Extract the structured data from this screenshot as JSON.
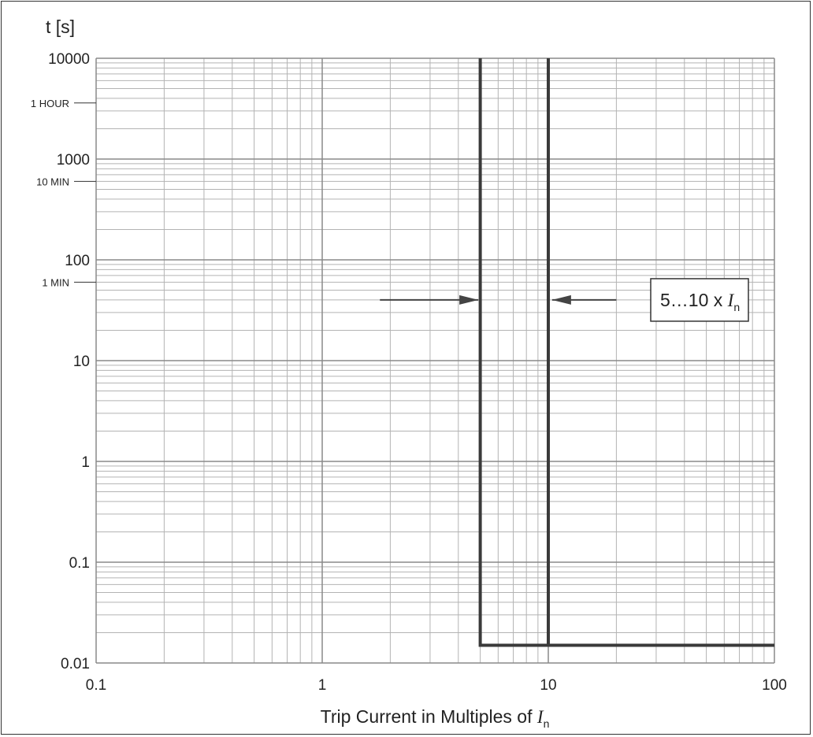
{
  "chart_data": {
    "type": "line",
    "title": "",
    "xlabel": {
      "text": "Trip Current in Multiples of ",
      "symbol": "I",
      "subscript": "n"
    },
    "ylabel": "t [s]",
    "x_scale": "log",
    "y_scale": "log",
    "xlim": [
      0.1,
      100
    ],
    "ylim": [
      0.01,
      10000
    ],
    "grid": true,
    "x_ticks": [
      {
        "value": 0.1,
        "label": "0.1"
      },
      {
        "value": 1,
        "label": "1"
      },
      {
        "value": 10,
        "label": "10"
      },
      {
        "value": 100,
        "label": "100"
      }
    ],
    "y_ticks": [
      {
        "value": 0.01,
        "label": "0.01"
      },
      {
        "value": 0.1,
        "label": "0.1"
      },
      {
        "value": 1,
        "label": "1"
      },
      {
        "value": 10,
        "label": "10"
      },
      {
        "value": 100,
        "label": "100"
      },
      {
        "value": 1000,
        "label": "1000"
      },
      {
        "value": 10000,
        "label": "10000"
      }
    ],
    "time_marks": [
      {
        "value": 3600,
        "label": "1 HOUR"
      },
      {
        "value": 600,
        "label": "10 MIN"
      },
      {
        "value": 60,
        "label": "1 MIN"
      }
    ],
    "series": [
      {
        "x": [
          5,
          5,
          100
        ],
        "y": [
          10000,
          0.015,
          0.015
        ],
        "color": "#3a3a3a"
      },
      {
        "x": [
          10,
          10
        ],
        "y": [
          10000,
          0.015
        ],
        "color": "#3a3a3a"
      }
    ],
    "annotation": {
      "text": "5…10 x ",
      "symbol": "I",
      "subscript": "n",
      "arrows": [
        {
          "from_x": 1.8,
          "to_x": 4.9,
          "y": 40,
          "direction": "right"
        },
        {
          "from_x": 20,
          "to_x": 10.4,
          "y": 40,
          "direction": "left"
        }
      ]
    }
  }
}
